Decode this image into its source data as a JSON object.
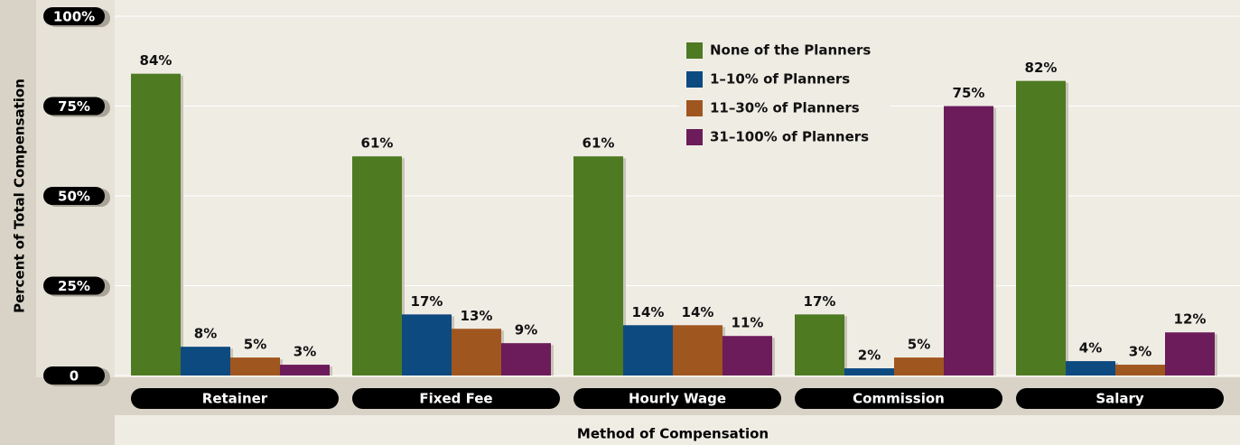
{
  "chart_data": {
    "type": "bar",
    "y_label": "Percent of Total Compensation",
    "x_label": "Method of Compensation",
    "categories": [
      "Retainer",
      "Fixed Fee",
      "Hourly Wage",
      "Commission",
      "Salary"
    ],
    "series": [
      {
        "name": "None of the Planners",
        "color": "#4e7a22",
        "values": [
          84,
          61,
          61,
          17,
          82
        ],
        "value_labels": [
          "84%",
          "61%",
          "61%",
          "17%",
          "82%"
        ]
      },
      {
        "name": "1–10% of Planners",
        "color": "#0d4a80",
        "values": [
          8,
          17,
          14,
          2,
          4
        ],
        "value_labels": [
          "8%",
          "17%",
          "14%",
          "2%",
          "4%"
        ]
      },
      {
        "name": "11–30% of Planners",
        "color": "#a0561f",
        "values": [
          5,
          13,
          14,
          5,
          3
        ],
        "value_labels": [
          "5%",
          "13%",
          "14%",
          "5%",
          "3%"
        ]
      },
      {
        "name": "31–100% of Planners",
        "color": "#6c1b5b",
        "values": [
          3,
          9,
          11,
          75,
          12
        ],
        "value_labels": [
          "3%",
          "9%",
          "11%",
          "75%",
          "12%"
        ]
      }
    ],
    "ylim": [
      0,
      100
    ],
    "yticks": [
      0,
      {
        "value": 25,
        "label": "25%"
      },
      {
        "value": 50,
        "label": "50%"
      },
      {
        "value": 75,
        "label": "75%"
      },
      {
        "value": 100,
        "label": "100%"
      }
    ],
    "grid": true,
    "legend": "top-right"
  }
}
